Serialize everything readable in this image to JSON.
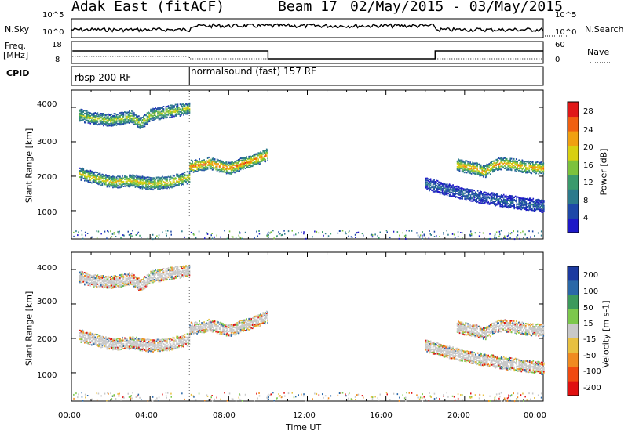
{
  "header": {
    "station": "Adak East (fitACF)",
    "beam": "Beam 17",
    "date_range": "02/May/2015 - 03/May/2015"
  },
  "top_panels": {
    "nsky_label": "N.Sky",
    "nsearch_label": "N.Search",
    "nsky_ticks": [
      "10^5",
      "10^0"
    ],
    "nsearch_ticks": [
      "10^5",
      "10^0"
    ],
    "freq_label": "Freq.",
    "freq_unit": "[MHz]",
    "freq_ticks": [
      "18",
      "8"
    ],
    "nave_label": "Nave",
    "nave_ticks": [
      "60",
      "0"
    ],
    "cpid_label": "CPID",
    "cpid_segments": [
      "rbsp 200 RF",
      "normalsound (fast) 157 RF"
    ]
  },
  "colors": {
    "power_scale": [
      "#1e18c8",
      "#1e48a8",
      "#2c7a8c",
      "#3a9a6c",
      "#7cc23c",
      "#d8d010",
      "#f0a010",
      "#f06010",
      "#e01818"
    ],
    "velocity_scale": [
      "#1c3aa0",
      "#2a68a8",
      "#3c9a5c",
      "#7cc84c",
      "#c8c8c8",
      "#e8c040",
      "#f08a20",
      "#f04a10",
      "#e01010"
    ]
  },
  "chart_data": [
    {
      "type": "heatmap",
      "title": "Power",
      "ylabel": "Slant Range [km]",
      "ylim": [
        180,
        4500
      ],
      "yticks": [
        "4000",
        "3000",
        "2000",
        "1000"
      ],
      "colorbar_label": "Power [dB]",
      "colorbar_ticks": [
        "28",
        "24",
        "20",
        "16",
        "12",
        "8",
        "4"
      ],
      "colorbar_range": [
        0,
        32
      ],
      "echo_bands": [
        {
          "name": "band-a",
          "x_hours": [
            0.4,
            1,
            2,
            3,
            3.5,
            4,
            4.5,
            5,
            5.5,
            6
          ],
          "range_km": [
            3800,
            3700,
            3650,
            3750,
            3550,
            3800,
            3850,
            3900,
            3950,
            4000
          ],
          "power_db": 14
        },
        {
          "name": "band-b",
          "x_hours": [
            0.4,
            1,
            2,
            3,
            4,
            5,
            6
          ],
          "range_km": [
            2100,
            2000,
            1850,
            1900,
            1800,
            1850,
            2000
          ],
          "power_db": 16
        },
        {
          "name": "band-c",
          "x_hours": [
            6,
            7,
            8,
            9,
            10
          ],
          "range_km": [
            2300,
            2400,
            2250,
            2450,
            2650
          ],
          "power_db": 20
        },
        {
          "name": "band-d",
          "x_hours": [
            19.6,
            20.5,
            21,
            21.5,
            22,
            23,
            24
          ],
          "range_km": [
            2350,
            2250,
            2150,
            2350,
            2400,
            2300,
            2250
          ],
          "power_db": 18
        },
        {
          "name": "band-e",
          "x_hours": [
            18,
            20,
            22,
            24
          ],
          "range_km": [
            1800,
            1500,
            1300,
            1150
          ],
          "power_db": 6
        }
      ]
    },
    {
      "type": "heatmap",
      "title": "Velocity",
      "ylabel": "Slant Range [km]",
      "xlabel": "Time UT",
      "ylim": [
        180,
        4500
      ],
      "yticks": [
        "4000",
        "3000",
        "2000",
        "1000"
      ],
      "xticks": [
        "00:00",
        "04:00",
        "08:00",
        "12:00",
        "16:00",
        "20:00",
        "00:00"
      ],
      "xlim_hours": [
        0,
        24
      ],
      "colorbar_label": "Velocity [m s-1]",
      "colorbar_ticks": [
        "200",
        "100",
        "50",
        "15",
        "-15",
        "-50",
        "-100",
        "-200"
      ],
      "colorbar_range": [
        -250,
        250
      ]
    }
  ],
  "time_axis": {
    "label": "Time UT"
  }
}
